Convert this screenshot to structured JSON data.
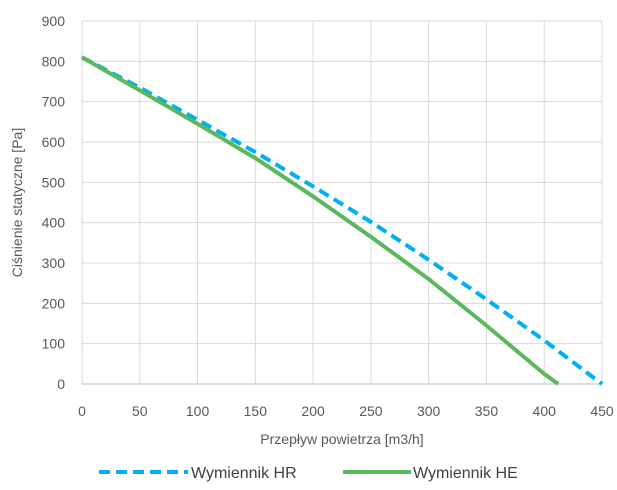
{
  "chart_data": {
    "type": "line",
    "title": "",
    "xlabel": "Przepływ powietrza [m3/h]",
    "ylabel": "Ciśnienie statyczne [Pa]",
    "xlim": [
      0,
      450
    ],
    "ylim": [
      0,
      900
    ],
    "x_ticks": [
      0,
      50,
      100,
      150,
      200,
      250,
      300,
      350,
      400,
      450
    ],
    "y_ticks": [
      0,
      100,
      200,
      300,
      400,
      500,
      600,
      700,
      800,
      900
    ],
    "grid": true,
    "legend_position": "bottom",
    "series": [
      {
        "name": "Wymiennik HR",
        "color": "#00b0f0",
        "line_style": "dashed",
        "x": [
          0,
          50,
          100,
          150,
          200,
          250,
          300,
          350,
          400,
          450
        ],
        "y": [
          810,
          735,
          655,
          575,
          490,
          402,
          308,
          210,
          108,
          0
        ]
      },
      {
        "name": "Wymiennik HE",
        "color": "#5cb85c",
        "line_style": "solid",
        "x": [
          0,
          50,
          100,
          150,
          200,
          250,
          300,
          350,
          400,
          412
        ],
        "y": [
          810,
          728,
          645,
          560,
          465,
          365,
          260,
          145,
          25,
          0
        ]
      }
    ]
  }
}
